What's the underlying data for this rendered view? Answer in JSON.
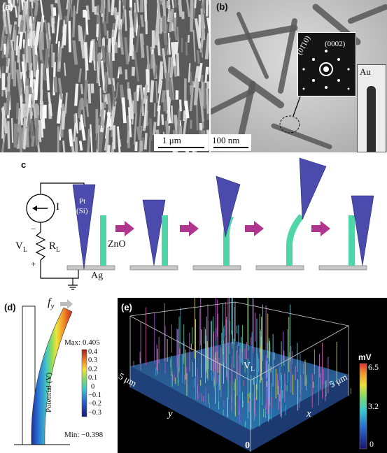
{
  "panel_a": {
    "label": "(a)",
    "scale": "1 μm"
  },
  "panel_b": {
    "label": "(b)",
    "scale": "100 nm",
    "sad_index_1": "(01̄10)",
    "sad_index_2": "(0002)",
    "inset_label": "Au"
  },
  "panel_c": {
    "label": "c",
    "source_label": "I",
    "voltage_label": "V",
    "voltage_sub": "L",
    "resistor_label": "R",
    "resistor_sub": "L",
    "minus": "−",
    "plus": "+",
    "tip_label_1": "Pt",
    "tip_label_2": "(Si)",
    "wire_label": "ZnO",
    "substrate_label": "Ag"
  },
  "panel_d": {
    "label": "(d)",
    "force_label": "f",
    "force_sub": "y",
    "max_label": "Max: 0.405",
    "min_label": "Min: −0.398",
    "colorbar_title": "Potential (V)",
    "ticks": [
      "0.4",
      "0.3",
      "0.2",
      "0.1",
      "0",
      "−0.1",
      "−0.2",
      "−0.3"
    ]
  },
  "panel_e": {
    "label": "(e)",
    "unit": "mV",
    "ticks": [
      "6.5",
      "3.2",
      "0"
    ],
    "peak_label": "V",
    "peak_sub": "L",
    "y_dim": "5 μm",
    "x_dim": "5 μm",
    "y_axis": "y",
    "x_axis": "x",
    "origin": "0"
  },
  "colors": {
    "tip": "#4a4bad",
    "wire": "#4fd6a8",
    "arrow": "#b0358f",
    "substrate": "#c8c8c8"
  }
}
